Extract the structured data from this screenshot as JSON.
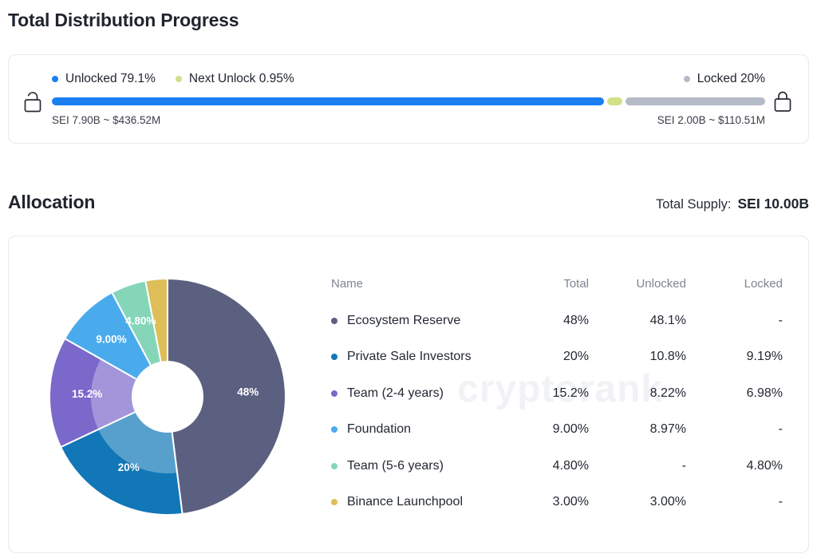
{
  "colors": {
    "accent_blue": "#1b7ff2",
    "next_unlock_green": "#d2e188",
    "locked_gray": "#b5bbc7"
  },
  "distribution": {
    "title": "Total Distribution Progress",
    "legend": [
      {
        "label": "Unlocked 79.1%"
      },
      {
        "label": "Next Unlock 0.95%"
      },
      {
        "label": "Locked 20%"
      }
    ],
    "bar": {
      "unlocked_pct": 79.1,
      "next_unlock_pct": 0.95,
      "locked_pct": 20
    },
    "unlocked_amount": "SEI 7.90B ~ $436.52M",
    "locked_amount": "SEI 2.00B ~ $110.51M"
  },
  "allocation": {
    "title": "Allocation",
    "total_supply_label": "Total Supply:",
    "total_supply_value": "SEI 10.00B",
    "watermark": "cryptorank",
    "table_headers": [
      "Name",
      "Total",
      "Unlocked",
      "Locked"
    ]
  },
  "chart_data": {
    "type": "pie",
    "title": "Allocation",
    "donut": true,
    "start_angle_deg": 0,
    "direction": "clockwise",
    "total_supply": "SEI 10.00B",
    "segments": [
      {
        "name": "Ecosystem Reserve",
        "total_pct": 48,
        "total": "48%",
        "unlocked": "48.1%",
        "locked": "-",
        "color": "#5b6080",
        "slice_label": "48%",
        "inner_lighter": false
      },
      {
        "name": "Private Sale Investors",
        "total_pct": 20,
        "total": "20%",
        "unlocked": "10.8%",
        "locked": "9.19%",
        "color": "#1177b7",
        "slice_label": "20%",
        "inner_lighter": true
      },
      {
        "name": "Team (2-4 years)",
        "total_pct": 15.2,
        "total": "15.2%",
        "unlocked": "8.22%",
        "locked": "6.98%",
        "color": "#7b68cb",
        "slice_label": "15.2%",
        "inner_lighter": true
      },
      {
        "name": "Foundation",
        "total_pct": 9,
        "total": "9.00%",
        "unlocked": "8.97%",
        "locked": "-",
        "color": "#49abec",
        "slice_label": "9.00%",
        "inner_lighter": false
      },
      {
        "name": "Team (5-6 years)",
        "total_pct": 4.8,
        "total": "4.80%",
        "unlocked": "-",
        "locked": "4.80%",
        "color": "#85d5b9",
        "slice_label": "4.80%",
        "inner_lighter": false
      },
      {
        "name": "Binance Launchpool",
        "total_pct": 3,
        "total": "3.00%",
        "unlocked": "3.00%",
        "locked": "-",
        "color": "#ddbe59",
        "slice_label": "",
        "inner_lighter": false
      }
    ]
  }
}
